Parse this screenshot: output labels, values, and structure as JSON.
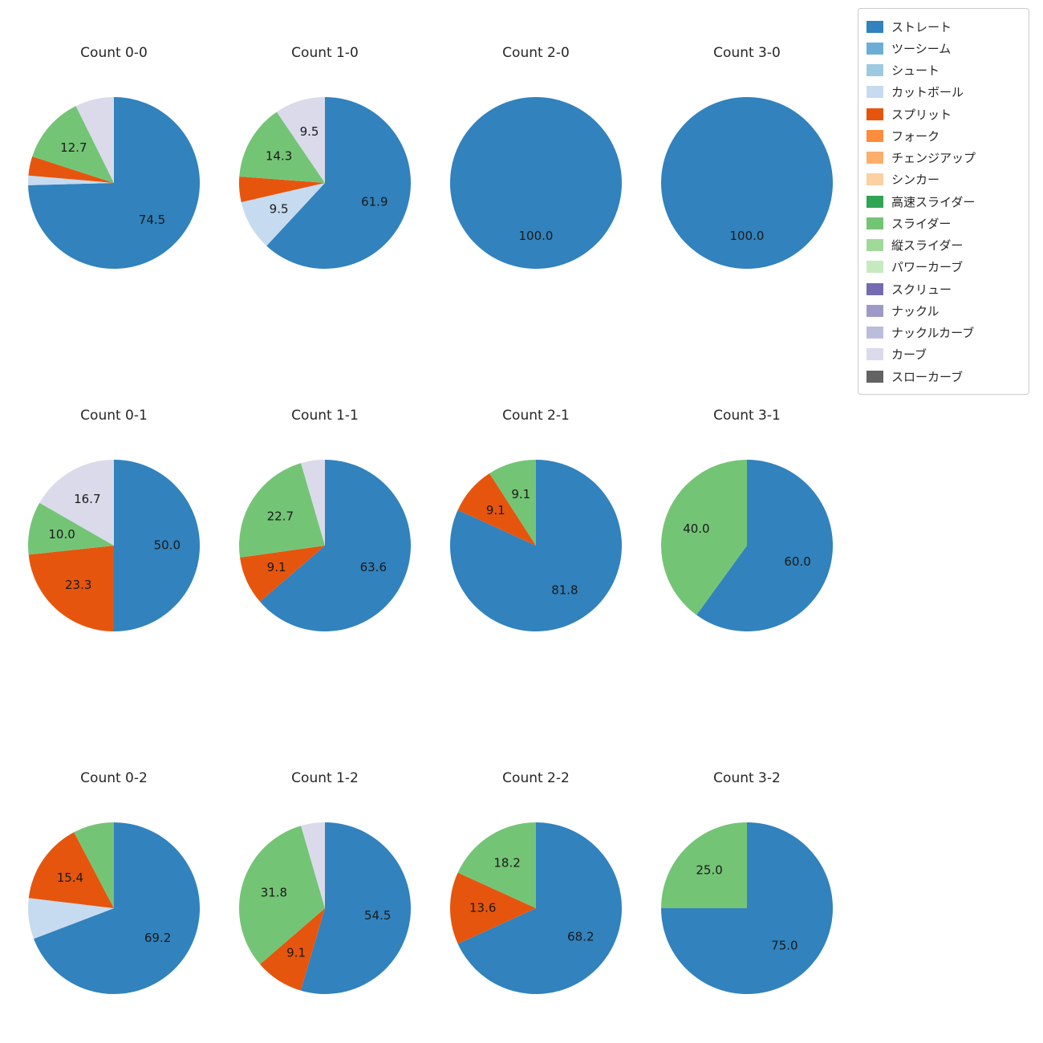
{
  "page": {
    "background": "#ffffff"
  },
  "chart_data": {
    "type": "pie",
    "layout": {
      "rows": 3,
      "cols": 4,
      "legend_position": "top-right",
      "start_angle": "top",
      "direction": "clockwise",
      "label_format": "one-decimal-percent"
    },
    "legend": [
      {
        "label": "ストレート",
        "color": "#3182bd"
      },
      {
        "label": "ツーシーム",
        "color": "#6baed6"
      },
      {
        "label": "シュート",
        "color": "#9ecae1"
      },
      {
        "label": "カットボール",
        "color": "#c6dbef"
      },
      {
        "label": "スプリット",
        "color": "#e6550d"
      },
      {
        "label": "フォーク",
        "color": "#fd8d3c"
      },
      {
        "label": "チェンジアップ",
        "color": "#fdae6b"
      },
      {
        "label": "シンカー",
        "color": "#fdd0a2"
      },
      {
        "label": "高速スライダー",
        "color": "#31a354"
      },
      {
        "label": "スライダー",
        "color": "#74c476"
      },
      {
        "label": "縦スライダー",
        "color": "#a1d99b"
      },
      {
        "label": "パワーカーブ",
        "color": "#c7e9c0"
      },
      {
        "label": "スクリュー",
        "color": "#756bb1"
      },
      {
        "label": "ナックル",
        "color": "#9e9ac8"
      },
      {
        "label": "ナックルカーブ",
        "color": "#bcbddc"
      },
      {
        "label": "カーブ",
        "color": "#dadaeb"
      },
      {
        "label": "スローカーブ",
        "color": "#636363"
      }
    ],
    "pies": [
      {
        "title": "Count 0-0",
        "slices": [
          {
            "name": "ストレート",
            "value": 74.5,
            "show_label": true
          },
          {
            "name": "カットボール",
            "value": 1.8,
            "show_label": false
          },
          {
            "name": "スプリット",
            "value": 3.6,
            "show_label": false
          },
          {
            "name": "スライダー",
            "value": 12.7,
            "show_label": true
          },
          {
            "name": "カーブ",
            "value": 7.3,
            "show_label": false
          }
        ]
      },
      {
        "title": "Count 1-0",
        "slices": [
          {
            "name": "ストレート",
            "value": 61.9,
            "show_label": true
          },
          {
            "name": "カットボール",
            "value": 9.5,
            "show_label": true
          },
          {
            "name": "スプリット",
            "value": 4.8,
            "show_label": false
          },
          {
            "name": "スライダー",
            "value": 14.3,
            "show_label": true
          },
          {
            "name": "カーブ",
            "value": 9.5,
            "show_label": true
          }
        ]
      },
      {
        "title": "Count 2-0",
        "slices": [
          {
            "name": "ストレート",
            "value": 100.0,
            "show_label": true
          }
        ]
      },
      {
        "title": "Count 3-0",
        "slices": [
          {
            "name": "ストレート",
            "value": 100.0,
            "show_label": true
          }
        ]
      },
      {
        "title": "Count 0-1",
        "slices": [
          {
            "name": "ストレート",
            "value": 50.0,
            "show_label": true
          },
          {
            "name": "スプリット",
            "value": 23.3,
            "show_label": true
          },
          {
            "name": "スライダー",
            "value": 10.0,
            "show_label": true
          },
          {
            "name": "カーブ",
            "value": 16.7,
            "show_label": true
          }
        ]
      },
      {
        "title": "Count 1-1",
        "slices": [
          {
            "name": "ストレート",
            "value": 63.6,
            "show_label": true
          },
          {
            "name": "スプリット",
            "value": 9.1,
            "show_label": true
          },
          {
            "name": "スライダー",
            "value": 22.7,
            "show_label": true
          },
          {
            "name": "カーブ",
            "value": 4.5,
            "show_label": false
          }
        ]
      },
      {
        "title": "Count 2-1",
        "slices": [
          {
            "name": "ストレート",
            "value": 81.8,
            "show_label": true
          },
          {
            "name": "スプリット",
            "value": 9.1,
            "show_label": true
          },
          {
            "name": "スライダー",
            "value": 9.1,
            "show_label": true
          }
        ]
      },
      {
        "title": "Count 3-1",
        "slices": [
          {
            "name": "ストレート",
            "value": 60.0,
            "show_label": true
          },
          {
            "name": "スライダー",
            "value": 40.0,
            "show_label": true
          }
        ]
      },
      {
        "title": "Count 0-2",
        "slices": [
          {
            "name": "ストレート",
            "value": 69.2,
            "show_label": true
          },
          {
            "name": "カットボール",
            "value": 7.7,
            "show_label": false
          },
          {
            "name": "スプリット",
            "value": 15.4,
            "show_label": true
          },
          {
            "name": "スライダー",
            "value": 7.7,
            "show_label": false
          }
        ]
      },
      {
        "title": "Count 1-2",
        "slices": [
          {
            "name": "ストレート",
            "value": 54.5,
            "show_label": true
          },
          {
            "name": "スプリット",
            "value": 9.1,
            "show_label": true
          },
          {
            "name": "スライダー",
            "value": 31.8,
            "show_label": true
          },
          {
            "name": "カーブ",
            "value": 4.5,
            "show_label": false
          }
        ]
      },
      {
        "title": "Count 2-2",
        "slices": [
          {
            "name": "ストレート",
            "value": 68.2,
            "show_label": true
          },
          {
            "name": "スプリット",
            "value": 13.6,
            "show_label": true
          },
          {
            "name": "スライダー",
            "value": 18.2,
            "show_label": true
          }
        ]
      },
      {
        "title": "Count 3-2",
        "slices": [
          {
            "name": "ストレート",
            "value": 75.0,
            "show_label": true
          },
          {
            "name": "スライダー",
            "value": 25.0,
            "show_label": true
          }
        ]
      }
    ]
  }
}
